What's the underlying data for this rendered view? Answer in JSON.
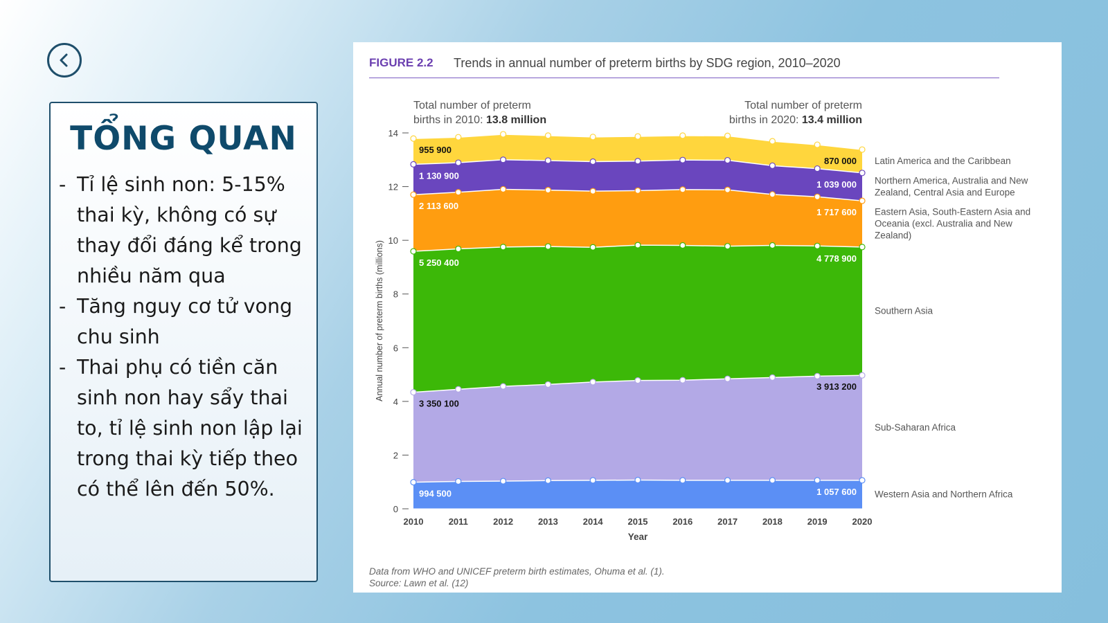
{
  "panel": {
    "title": "TỔNG QUAN",
    "bullets": [
      "Tỉ lệ sinh non: 5-15% thai kỳ, không có sự thay đổi đáng kể trong nhiều năm qua",
      "Tăng nguy cơ tử vong chu  sinh",
      "Thai phụ có tiền căn sinh non hay sẩy thai to, tỉ lệ sinh non lập lại trong thai kỳ tiếp theo có thể lên đến 50%."
    ],
    "dash": "-"
  },
  "back_button": {
    "icon": "chevron-left-icon"
  },
  "figure": {
    "label": "FIGURE 2.2",
    "title": "Trends in annual number of preterm births by SDG region, 2010–2020",
    "note_line1": "Data from WHO and UNICEF preterm birth estimates, Ohuma et al. (1).",
    "note_line2": "Source: Lawn et al. (12)",
    "callout_2010_line1": "Total number of preterm",
    "callout_2010_prefix": "births in 2010: ",
    "callout_2010_value": "13.8 million",
    "callout_2020_line1": "Total number of preterm",
    "callout_2020_prefix": "births in 2020: ",
    "callout_2020_value": "13.4 million"
  },
  "chart_data": {
    "type": "area",
    "stacked": true,
    "xlabel": "Year",
    "ylabel": "Annual number of preterm births (millions)",
    "ylim": [
      0,
      14
    ],
    "yticks": [
      0,
      2,
      4,
      6,
      8,
      10,
      12,
      14
    ],
    "x": [
      2010,
      2011,
      2012,
      2013,
      2014,
      2015,
      2016,
      2017,
      2018,
      2019,
      2020
    ],
    "series": [
      {
        "name": "Western Asia and Northern Africa",
        "color": "#5b8ff5",
        "values": [
          0.99,
          1.02,
          1.03,
          1.05,
          1.06,
          1.07,
          1.06,
          1.06,
          1.06,
          1.06,
          1.06
        ],
        "label_start": "994 500",
        "label_end": "1 057 600",
        "label_color": "#ffffff"
      },
      {
        "name": "Sub-Saharan Africa",
        "color": "#b3a9e6",
        "values": [
          3.35,
          3.43,
          3.53,
          3.58,
          3.66,
          3.71,
          3.73,
          3.78,
          3.83,
          3.88,
          3.91
        ],
        "label_start": "3 350 100",
        "label_end": "3 913 200",
        "label_color": "#111111"
      },
      {
        "name": "Southern Asia",
        "color": "#3cb808",
        "values": [
          5.25,
          5.23,
          5.19,
          5.14,
          5.02,
          5.04,
          5.02,
          4.94,
          4.92,
          4.85,
          4.78
        ],
        "label_start": "5 250 400",
        "label_end": "4 778 900",
        "label_color": "#ffffff"
      },
      {
        "name": "Eastern Asia, South-Eastern Asia and Oceania (excl. Australia and New Zealand)",
        "color": "#ff9d10",
        "values": [
          2.11,
          2.11,
          2.15,
          2.1,
          2.09,
          2.03,
          2.08,
          2.1,
          1.9,
          1.83,
          1.72
        ],
        "label_start": "2 113 600",
        "label_end": "1 717 600",
        "label_color": "#ffffff"
      },
      {
        "name": "Northern America, Australia and New Zealand, Central Asia and Europe",
        "color": "#6a46be",
        "values": [
          1.13,
          1.1,
          1.1,
          1.1,
          1.1,
          1.1,
          1.1,
          1.1,
          1.07,
          1.05,
          1.04
        ],
        "label_start": "1 130 900",
        "label_end": "1 039 000",
        "label_color": "#ffffff"
      },
      {
        "name": "Latin America and the Caribbean",
        "color": "#ffd63d",
        "values": [
          0.96,
          0.95,
          0.95,
          0.93,
          0.92,
          0.92,
          0.91,
          0.91,
          0.91,
          0.89,
          0.87
        ],
        "label_start": "955 900",
        "label_end": "870 000",
        "label_color": "#111111"
      }
    ]
  }
}
